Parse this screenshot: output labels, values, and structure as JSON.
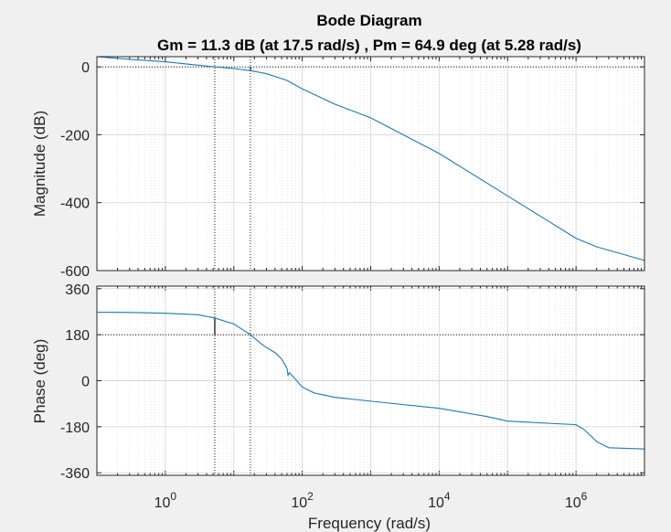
{
  "colors": {
    "figure_background": "#f0f0f0",
    "axes_background": "#ffffff",
    "axes_edge": "#262626",
    "grid": "#d7d7d7",
    "curve": "#1f77b4",
    "margin_marker": "#000000"
  },
  "chart_data": {
    "type": "line",
    "title": "Bode Diagram",
    "subtitle": "Gm = 11.3 dB (at 17.5 rad/s) ,  Pm = 64.9 deg (at 5.28 rad/s)",
    "xlabel": "Frequency  (rad/s)",
    "xscale": "log",
    "xlim": [
      0.1,
      10000000
    ],
    "x_ticks": [
      {
        "value": 1,
        "base": "10",
        "exp": "0"
      },
      {
        "value": 100,
        "base": "10",
        "exp": "2"
      },
      {
        "value": 10000,
        "base": "10",
        "exp": "4"
      },
      {
        "value": 1000000,
        "base": "10",
        "exp": "6"
      }
    ],
    "grid": true,
    "margins": {
      "gain_margin_frequency": 17.5,
      "phase_margin_frequency": 5.28,
      "gain_margin_db": 11.3,
      "phase_margin_deg": 64.9
    },
    "panels": [
      {
        "id": "magnitude",
        "ylabel": "Magnitude (dB)",
        "ylim": [
          -600,
          30
        ],
        "y_ticks": [
          0,
          -200,
          -400,
          -600
        ],
        "reference_line": 0,
        "series": [
          {
            "x": [
              0.1,
              0.3,
              1,
              3,
              5.28,
              10,
              17.5,
              30,
              60,
              100,
              300,
              1000,
              10000,
              100000,
              1000000,
              2000000,
              10000000
            ],
            "y": [
              30,
              22,
              15,
              5,
              0,
              -5,
              -11.3,
              -20,
              -40,
              -65,
              -110,
              -150,
              -255,
              -380,
              -505,
              -530,
              -570
            ]
          }
        ]
      },
      {
        "id": "phase",
        "ylabel": "Phase (deg)",
        "ylim": [
          -370,
          370
        ],
        "y_ticks": [
          360,
          180,
          0,
          -180,
          -360
        ],
        "reference_line": 180,
        "series": [
          {
            "x": [
              0.1,
              0.3,
              1,
              3,
              5.28,
              10,
              17.5,
              25,
              30,
              40,
              50,
              60,
              62,
              65,
              80,
              100,
              150,
              300,
              1000,
              10000,
              50000,
              100000,
              1000000,
              1300000,
              2000000,
              3000000,
              10000000
            ],
            "y": [
              268,
              267,
              264,
              258,
              245,
              222,
              180,
              145,
              130,
              110,
              85,
              48,
              22,
              32,
              5,
              -25,
              -48,
              -65,
              -80,
              -108,
              -140,
              -158,
              -172,
              -190,
              -238,
              -262,
              -267
            ]
          }
        ]
      }
    ]
  }
}
